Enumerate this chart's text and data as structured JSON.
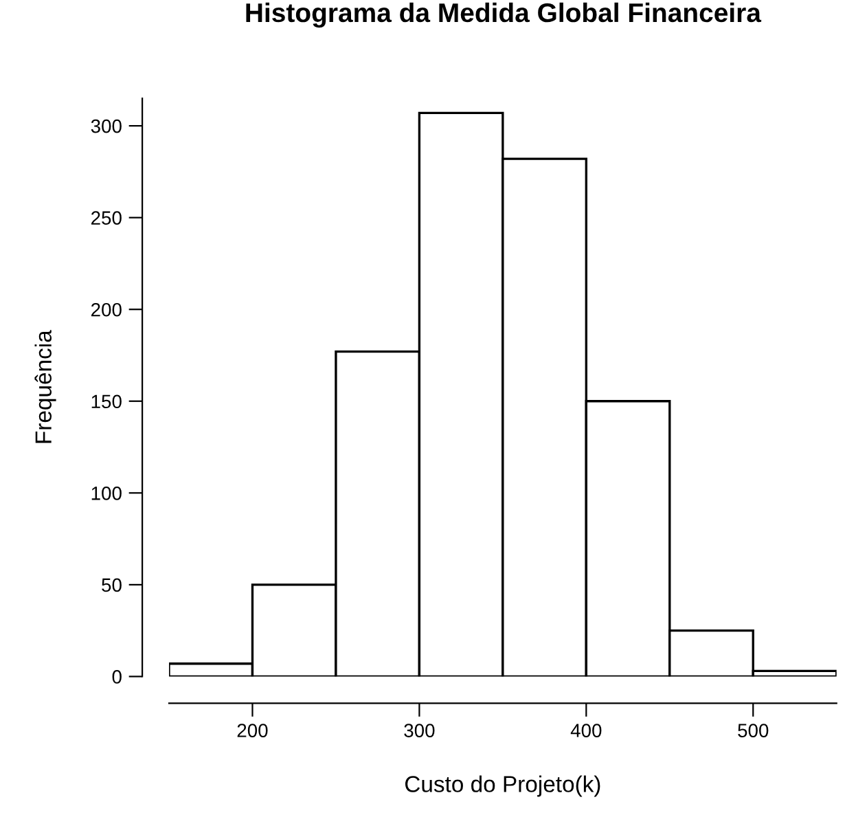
{
  "chart_data": {
    "type": "histogram",
    "title": "Histograma da Medida Global Financeira",
    "xlabel": "Custo do Projeto(k)",
    "ylabel": "Frequência",
    "bins": [
      150,
      200,
      250,
      300,
      350,
      400,
      450,
      500,
      550
    ],
    "values": [
      7,
      50,
      177,
      307,
      282,
      150,
      25,
      3
    ],
    "color": "#ffffff",
    "xlim": [
      150,
      550
    ],
    "xticks": [
      200,
      300,
      400,
      500
    ],
    "ylim": [
      0,
      315
    ],
    "yticks": [
      0,
      50,
      100,
      150,
      200,
      250,
      300
    ],
    "grid": false
  }
}
